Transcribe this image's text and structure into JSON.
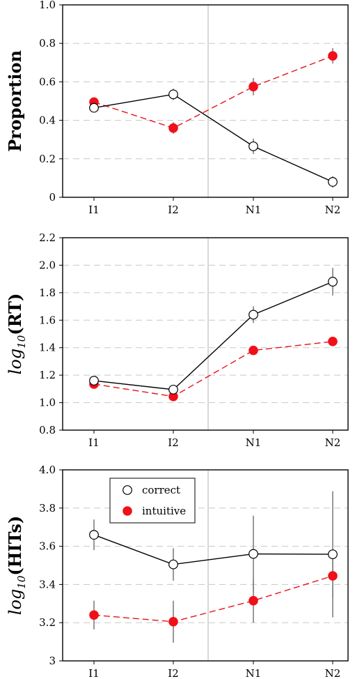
{
  "chart_data": [
    {
      "type": "line",
      "ylabel": "Proportion",
      "categories": [
        "I1",
        "I2",
        "N1",
        "N2"
      ],
      "ylim": [
        0,
        1.0
      ],
      "yticks": [
        "0",
        "0.2",
        "0.4",
        "0.6",
        "0.8",
        "1.0"
      ],
      "ytick_values": [
        0,
        0.2,
        0.4,
        0.6,
        0.8,
        1.0
      ],
      "grid": true,
      "series": [
        {
          "name": "correct",
          "values": [
            0.465,
            0.535,
            0.265,
            0.08
          ],
          "err": [
            0.02,
            0.03,
            0.04,
            0.03
          ],
          "color": "#000000",
          "marker": "open-circle",
          "linestyle": "solid"
        },
        {
          "name": "intuitive",
          "values": [
            0.495,
            0.36,
            0.575,
            0.735
          ],
          "err": [
            0.02,
            0.03,
            0.045,
            0.04
          ],
          "color": "#f0101a",
          "marker": "filled-circle",
          "linestyle": "dashed"
        }
      ]
    },
    {
      "type": "line",
      "ylabel": "log10(RT)",
      "ylabel_main": "log",
      "ylabel_sub": "10",
      "ylabel_tail": "(RT)",
      "categories": [
        "I1",
        "I2",
        "N1",
        "N2"
      ],
      "ylim": [
        0.8,
        2.2
      ],
      "yticks": [
        "0.8",
        "1.0",
        "1.2",
        "1.4",
        "1.6",
        "1.8",
        "2.0",
        "2.2"
      ],
      "ytick_values": [
        0.8,
        1.0,
        1.2,
        1.4,
        1.6,
        1.8,
        2.0,
        2.2
      ],
      "grid": true,
      "series": [
        {
          "name": "correct",
          "values": [
            1.16,
            1.095,
            1.64,
            1.88
          ],
          "err": [
            0.03,
            0.03,
            0.06,
            0.1
          ],
          "color": "#000000",
          "marker": "open-circle",
          "linestyle": "solid"
        },
        {
          "name": "intuitive",
          "values": [
            1.135,
            1.045,
            1.38,
            1.445
          ],
          "err": [
            0.02,
            0.03,
            0.02,
            0.015
          ],
          "color": "#f0101a",
          "marker": "filled-circle",
          "linestyle": "dashed"
        }
      ]
    },
    {
      "type": "line",
      "ylabel": "log10(HITs)",
      "ylabel_main": "log",
      "ylabel_sub": "10",
      "ylabel_tail": "(HITs)",
      "categories": [
        "I1",
        "I2",
        "N1",
        "N2"
      ],
      "ylim": [
        3.0,
        4.0
      ],
      "yticks": [
        "3",
        "3.2",
        "3.4",
        "3.6",
        "3.8",
        "4.0"
      ],
      "ytick_values": [
        3.0,
        3.2,
        3.4,
        3.6,
        3.8,
        4.0
      ],
      "grid": true,
      "legend": {
        "position": "top-left",
        "entries": [
          "correct",
          "intuitive"
        ]
      },
      "series": [
        {
          "name": "correct",
          "values": [
            3.66,
            3.505,
            3.56,
            3.558
          ],
          "err": [
            0.08,
            0.085,
            0.2,
            0.33
          ],
          "color": "#000000",
          "marker": "open-circle",
          "linestyle": "solid"
        },
        {
          "name": "intuitive",
          "values": [
            3.24,
            3.205,
            3.315,
            3.445
          ],
          "err": [
            0.075,
            0.11,
            0.115,
            0.115
          ],
          "color": "#f0101a",
          "marker": "filled-circle",
          "linestyle": "dashed"
        }
      ]
    }
  ]
}
